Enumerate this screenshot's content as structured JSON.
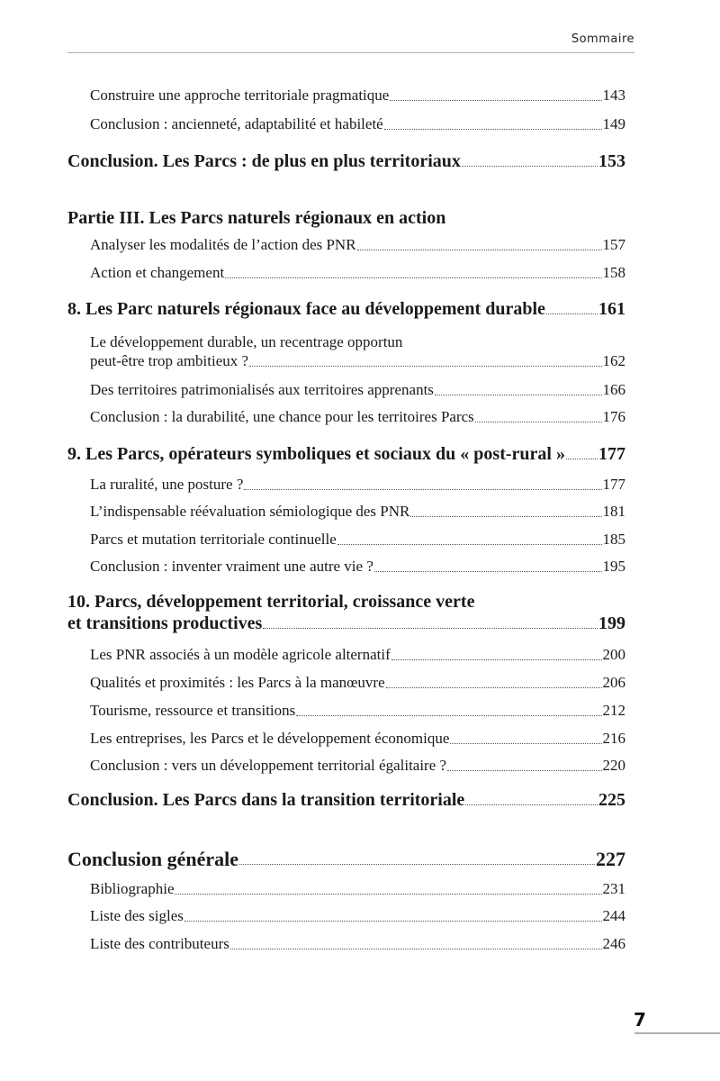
{
  "header": {
    "section": "Sommaire"
  },
  "footer": {
    "page_number": "7"
  },
  "toc": [
    {
      "label": "Construire une approche territoriale pragmatique",
      "page": "143",
      "level": 1
    },
    {
      "label": "Conclusion : ancienneté, adaptabilité et habileté",
      "page": "149",
      "level": 1
    },
    {
      "label": "Conclusion. Les Parcs : de plus en plus territoriaux",
      "page": "153",
      "level": 0
    },
    {
      "label": "Partie III. Les Parcs naturels régionaux en action",
      "page": "",
      "level": 0
    },
    {
      "label": "Analyser les modalités de l’action des PNR",
      "page": "157",
      "level": 1
    },
    {
      "label": "Action et changement",
      "page": "158",
      "level": 1
    },
    {
      "label": "8. Les Parc naturels régionaux face au développement durable",
      "page": "161",
      "level": 0
    },
    {
      "first_line": "Le développement durable, un recentrage opportun",
      "label": "peut-être trop ambitieux ?",
      "page": "162",
      "level": 1
    },
    {
      "label": "Des territoires patrimonialisés aux territoires apprenants",
      "page": "166",
      "level": 1
    },
    {
      "label": "Conclusion : la durabilité, une chance pour les territoires Parcs",
      "page": "176",
      "level": 1
    },
    {
      "label": "9. Les Parcs, opérateurs symboliques et sociaux du « post-rural »",
      "page": "177",
      "level": 0
    },
    {
      "label": "La ruralité, une posture ?",
      "page": "177",
      "level": 1
    },
    {
      "label": "L’indispensable réévaluation sémiologique des PNR",
      "page": "181",
      "level": 1
    },
    {
      "label": "Parcs et mutation territoriale continuelle",
      "page": "185",
      "level": 1
    },
    {
      "label": "Conclusion : inventer vraiment une autre vie ?",
      "page": "195",
      "level": 1
    },
    {
      "first_line": "10. Parcs, développement territorial, croissance verte",
      "label": "et transitions productives",
      "page": "199",
      "level": 0
    },
    {
      "label": "Les PNR associés à un modèle agricole alternatif",
      "page": "200",
      "level": 1
    },
    {
      "label": "Qualités et proximités : les Parcs à la manœuvre",
      "page": "206",
      "level": 1
    },
    {
      "label": "Tourisme, ressource et transitions",
      "page": "212",
      "level": 1
    },
    {
      "label": "Les entreprises, les Parcs et le développement économique",
      "page": "216",
      "level": 1
    },
    {
      "label": "Conclusion : vers un développement territorial égalitaire ?",
      "page": "220",
      "level": 1
    },
    {
      "label": "Conclusion. Les Parcs dans la transition territoriale",
      "page": "225",
      "level": 0
    },
    {
      "label": "Conclusion générale",
      "page": "227",
      "level": 0
    },
    {
      "label": "Bibliographie",
      "page": "231",
      "level": 1
    },
    {
      "label": "Liste des sigles",
      "page": "244",
      "level": 1
    },
    {
      "label": "Liste des contributeurs",
      "page": "246",
      "level": 1
    }
  ]
}
